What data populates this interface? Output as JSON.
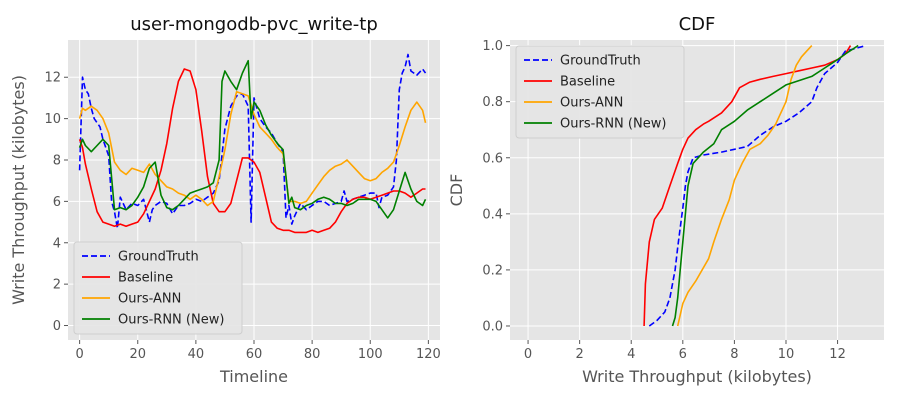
{
  "chart_data": [
    {
      "type": "line",
      "title": "user-mongodb-pvc_write-tp",
      "xlabel": "Timeline",
      "ylabel": "Write Throughput (kilobytes)",
      "xlim": [
        -4,
        124
      ],
      "ylim": [
        -0.7,
        13.8
      ],
      "xticks": [
        0,
        20,
        40,
        60,
        80,
        100,
        120
      ],
      "yticks": [
        0,
        2,
        4,
        6,
        8,
        10,
        12
      ],
      "grid": true,
      "legend_position": "lower-left",
      "series": [
        {
          "name": "GroundTruth",
          "color": "#0000ff",
          "dash": "dashed",
          "x": [
            0,
            1,
            2,
            3,
            4,
            5,
            6,
            7,
            8,
            9,
            10,
            11,
            12,
            13,
            14,
            16,
            18,
            20,
            22,
            24,
            25,
            26,
            28,
            30,
            32,
            34,
            36,
            38,
            40,
            42,
            44,
            46,
            48,
            50,
            52,
            54,
            56,
            58,
            59,
            60,
            61,
            62,
            64,
            66,
            68,
            70,
            71,
            72,
            73,
            74,
            76,
            78,
            80,
            82,
            84,
            86,
            88,
            90,
            91,
            92,
            94,
            96,
            98,
            100,
            102,
            103,
            104,
            106,
            108,
            109,
            110,
            111,
            112,
            113,
            114,
            116,
            118,
            119
          ],
          "y": [
            7.5,
            12.0,
            11.4,
            11.2,
            10.5,
            10.0,
            9.8,
            9.6,
            9.0,
            8.6,
            8.2,
            6.0,
            5.5,
            4.7,
            6.2,
            5.6,
            5.9,
            5.8,
            6.1,
            5.0,
            5.6,
            5.8,
            6.0,
            5.9,
            5.4,
            5.8,
            5.8,
            5.9,
            6.1,
            6.0,
            6.2,
            6.4,
            7.0,
            9.5,
            10.6,
            11.1,
            11.2,
            10.6,
            5.0,
            11.0,
            10.5,
            10.0,
            9.6,
            9.3,
            8.8,
            8.4,
            5.2,
            5.8,
            4.9,
            5.3,
            5.9,
            5.6,
            5.8,
            6.0,
            6.0,
            5.8,
            5.9,
            6.0,
            6.5,
            6.0,
            6.1,
            6.2,
            6.3,
            6.4,
            6.4,
            5.7,
            6.2,
            6.3,
            6.7,
            8.0,
            11.4,
            12.2,
            12.5,
            13.1,
            12.3,
            12.1,
            12.4,
            12.2
          ]
        },
        {
          "name": "Baseline",
          "color": "#ff0000",
          "dash": "solid",
          "x": [
            0,
            1,
            2,
            4,
            6,
            8,
            10,
            12,
            14,
            16,
            18,
            20,
            22,
            24,
            26,
            28,
            30,
            32,
            34,
            36,
            38,
            40,
            42,
            44,
            46,
            48,
            50,
            52,
            54,
            56,
            58,
            60,
            62,
            64,
            66,
            68,
            70,
            72,
            74,
            76,
            78,
            80,
            82,
            84,
            86,
            88,
            90,
            92,
            94,
            96,
            98,
            100,
            102,
            104,
            106,
            108,
            110,
            112,
            114,
            116,
            118,
            119
          ],
          "y": [
            9.0,
            8.6,
            7.8,
            6.6,
            5.5,
            5.0,
            4.9,
            4.8,
            4.9,
            4.8,
            4.9,
            5.0,
            5.4,
            6.0,
            6.6,
            7.5,
            8.8,
            10.5,
            11.8,
            12.4,
            12.3,
            11.4,
            9.4,
            7.2,
            5.9,
            5.5,
            5.5,
            5.9,
            7.0,
            8.1,
            8.1,
            7.9,
            7.4,
            6.2,
            5.0,
            4.7,
            4.6,
            4.6,
            4.5,
            4.5,
            4.5,
            4.6,
            4.5,
            4.6,
            4.7,
            5.0,
            5.5,
            5.9,
            6.1,
            6.2,
            6.2,
            6.1,
            6.2,
            6.3,
            6.4,
            6.5,
            6.5,
            6.4,
            6.2,
            6.4,
            6.6,
            6.6
          ]
        },
        {
          "name": "Ours-ANN",
          "color": "#ffa500",
          "dash": "solid",
          "x": [
            0,
            1,
            2,
            4,
            6,
            8,
            10,
            12,
            14,
            16,
            18,
            20,
            22,
            24,
            26,
            28,
            30,
            32,
            34,
            36,
            38,
            40,
            42,
            44,
            46,
            48,
            50,
            52,
            54,
            56,
            58,
            60,
            62,
            64,
            66,
            68,
            70,
            72,
            74,
            76,
            78,
            80,
            82,
            84,
            86,
            88,
            90,
            92,
            94,
            96,
            98,
            100,
            102,
            104,
            106,
            108,
            110,
            112,
            114,
            116,
            118,
            119
          ],
          "y": [
            10.0,
            10.5,
            10.4,
            10.6,
            10.4,
            10.0,
            9.3,
            7.9,
            7.5,
            7.3,
            7.6,
            7.5,
            7.4,
            7.8,
            7.3,
            7.0,
            6.7,
            6.6,
            6.4,
            6.3,
            6.1,
            6.3,
            6.1,
            5.8,
            6.0,
            7.2,
            8.5,
            10.2,
            11.3,
            11.2,
            11.1,
            10.2,
            9.6,
            9.3,
            9.0,
            8.6,
            8.3,
            6.0,
            6.0,
            5.9,
            6.0,
            6.4,
            6.8,
            7.2,
            7.5,
            7.7,
            7.8,
            8.0,
            7.7,
            7.4,
            7.1,
            7.0,
            7.1,
            7.4,
            7.6,
            7.9,
            8.7,
            9.6,
            10.4,
            10.8,
            10.4,
            9.8
          ]
        },
        {
          "name": "Ours-RNN (New)",
          "color": "#008000",
          "dash": "solid",
          "x": [
            0,
            1,
            2,
            4,
            6,
            8,
            10,
            12,
            14,
            16,
            18,
            20,
            22,
            24,
            26,
            28,
            30,
            32,
            34,
            36,
            38,
            40,
            42,
            44,
            46,
            48,
            49,
            50,
            52,
            54,
            56,
            58,
            59,
            60,
            62,
            64,
            66,
            68,
            70,
            72,
            73,
            74,
            76,
            78,
            80,
            82,
            84,
            86,
            88,
            90,
            92,
            94,
            96,
            98,
            100,
            102,
            104,
            106,
            108,
            110,
            112,
            114,
            116,
            118,
            119
          ],
          "y": [
            8.6,
            9.0,
            8.7,
            8.4,
            8.7,
            9.0,
            8.7,
            5.6,
            5.7,
            5.6,
            5.8,
            6.2,
            6.7,
            7.6,
            7.9,
            6.3,
            5.7,
            5.6,
            5.8,
            6.1,
            6.4,
            6.5,
            6.6,
            6.7,
            6.9,
            8.0,
            11.8,
            12.3,
            11.8,
            11.4,
            12.2,
            12.8,
            10.0,
            10.8,
            10.4,
            9.7,
            9.2,
            8.8,
            8.5,
            5.9,
            6.2,
            5.7,
            5.6,
            5.8,
            5.9,
            6.1,
            6.2,
            6.1,
            5.9,
            5.9,
            5.8,
            5.9,
            6.1,
            6.1,
            6.1,
            6.0,
            5.6,
            5.2,
            5.6,
            6.5,
            7.4,
            6.6,
            6.0,
            5.8,
            6.1
          ]
        }
      ],
      "legend": [
        "GroundTruth",
        "Baseline",
        "Ours-ANN",
        "Ours-RNN (New)"
      ]
    },
    {
      "type": "line",
      "title": "CDF",
      "xlabel": "Write Throughput (kilobytes)",
      "ylabel": "CDF",
      "xlim": [
        -0.7,
        13.8
      ],
      "ylim": [
        -0.05,
        1.02
      ],
      "xticks": [
        0,
        2,
        4,
        6,
        8,
        10,
        12
      ],
      "yticks": [
        0.0,
        0.2,
        0.4,
        0.6,
        0.8,
        1.0
      ],
      "grid": true,
      "legend_position": "upper-left",
      "series": [
        {
          "name": "GroundTruth",
          "color": "#0000ff",
          "dash": "dashed",
          "x": [
            4.7,
            5.0,
            5.3,
            5.5,
            5.7,
            5.8,
            5.9,
            6.0,
            6.1,
            6.2,
            6.4,
            6.8,
            7.5,
            8.0,
            8.5,
            9.0,
            9.5,
            10.0,
            10.5,
            11.0,
            11.2,
            11.5,
            12.0,
            12.3,
            13.1
          ],
          "y": [
            0.0,
            0.02,
            0.05,
            0.1,
            0.2,
            0.28,
            0.35,
            0.42,
            0.5,
            0.55,
            0.6,
            0.61,
            0.62,
            0.63,
            0.64,
            0.68,
            0.71,
            0.73,
            0.76,
            0.8,
            0.85,
            0.9,
            0.94,
            0.98,
            1.0
          ]
        },
        {
          "name": "Baseline",
          "color": "#ff0000",
          "dash": "solid",
          "x": [
            4.5,
            4.55,
            4.7,
            4.9,
            5.2,
            5.5,
            5.8,
            6.0,
            6.2,
            6.5,
            6.8,
            7.0,
            7.5,
            7.9,
            8.2,
            8.6,
            9.0,
            9.5,
            10.0,
            10.5,
            11.0,
            11.5,
            12.0,
            12.3,
            12.5
          ],
          "y": [
            0.0,
            0.15,
            0.3,
            0.38,
            0.42,
            0.5,
            0.58,
            0.63,
            0.67,
            0.7,
            0.72,
            0.73,
            0.76,
            0.8,
            0.85,
            0.87,
            0.88,
            0.89,
            0.9,
            0.91,
            0.92,
            0.93,
            0.95,
            0.97,
            1.0
          ]
        },
        {
          "name": "Ours-ANN",
          "color": "#ffa500",
          "dash": "solid",
          "x": [
            5.8,
            6.0,
            6.2,
            6.5,
            7.0,
            7.2,
            7.5,
            7.8,
            8.0,
            8.3,
            8.6,
            9.0,
            9.3,
            9.6,
            10.0,
            10.2,
            10.4,
            10.6,
            10.8,
            11.0
          ],
          "y": [
            0.0,
            0.08,
            0.12,
            0.16,
            0.24,
            0.3,
            0.38,
            0.45,
            0.52,
            0.58,
            0.63,
            0.65,
            0.68,
            0.72,
            0.8,
            0.88,
            0.93,
            0.96,
            0.98,
            1.0
          ]
        },
        {
          "name": "Ours-RNN (New)",
          "color": "#008000",
          "dash": "solid",
          "x": [
            5.6,
            5.7,
            5.8,
            5.9,
            6.0,
            6.1,
            6.2,
            6.4,
            6.8,
            7.2,
            7.5,
            8.0,
            8.5,
            9.0,
            9.5,
            10.0,
            11.0,
            11.5,
            12.0,
            12.3,
            12.8
          ],
          "y": [
            0.0,
            0.03,
            0.1,
            0.2,
            0.3,
            0.4,
            0.5,
            0.58,
            0.62,
            0.65,
            0.7,
            0.73,
            0.77,
            0.8,
            0.83,
            0.86,
            0.89,
            0.92,
            0.95,
            0.97,
            1.0
          ]
        }
      ],
      "legend": [
        "GroundTruth",
        "Baseline",
        "Ours-ANN",
        "Ours-RNN (New)"
      ]
    }
  ]
}
